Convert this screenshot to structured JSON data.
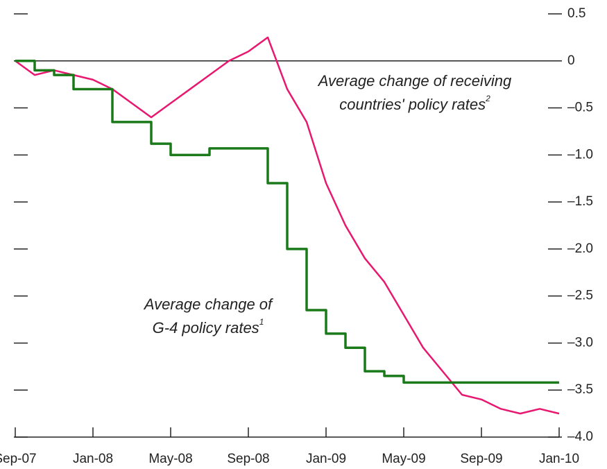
{
  "chart_data": {
    "type": "line",
    "categories": [
      "Sep-07",
      null,
      null,
      null,
      "Jan-08",
      null,
      null,
      null,
      "May-08",
      null,
      null,
      null,
      "Sep-08",
      null,
      null,
      null,
      "Jan-09",
      null,
      null,
      null,
      "May-09",
      null,
      null,
      null,
      "Sep-09",
      null,
      null,
      null,
      "Jan-10"
    ],
    "series": [
      {
        "name": "Average change of receiving countries' policy rates",
        "color": "#e8176f",
        "step": false,
        "values": [
          0.0,
          -0.15,
          -0.1,
          -0.15,
          -0.2,
          -0.3,
          -0.45,
          -0.6,
          -0.45,
          -0.3,
          -0.15,
          0.0,
          0.1,
          0.25,
          -0.3,
          -0.65,
          -1.3,
          -1.75,
          -2.1,
          -2.35,
          -2.7,
          -3.05,
          -3.3,
          -3.55,
          -3.6,
          -3.7,
          -3.75,
          -3.7,
          -3.75
        ]
      },
      {
        "name": "Average change of G-4 policy rates",
        "color": "#1a7a1a",
        "step": true,
        "values": [
          0.0,
          -0.1,
          -0.15,
          -0.3,
          -0.3,
          -0.65,
          -0.65,
          -0.88,
          -1.0,
          -1.0,
          -0.93,
          -0.93,
          -0.93,
          -1.3,
          -2.0,
          -2.65,
          -2.9,
          -3.05,
          -3.3,
          -3.35,
          -3.42,
          -3.42,
          -3.42,
          -3.42,
          -3.42,
          -3.42,
          -3.42,
          -3.42,
          -3.42
        ]
      }
    ],
    "annotations": [
      {
        "lines": [
          "Average change of receiving",
          "countries' policy rates"
        ],
        "sup": "2"
      },
      {
        "lines": [
          "Average change of",
          "G-4 policy rates"
        ],
        "sup": "1"
      }
    ],
    "ylim": [
      -4.0,
      0.5
    ],
    "yticks": [
      0.5,
      0,
      {
        "value": -0.5,
        "label": "–0.5"
      },
      {
        "value": -1.0,
        "label": "–1.0"
      },
      {
        "value": -1.5,
        "label": "–1.5"
      },
      {
        "value": -2.0,
        "label": "–2.0"
      },
      {
        "value": -2.5,
        "label": "–2.5"
      },
      {
        "value": -3.0,
        "label": "–3.0"
      },
      {
        "value": -3.5,
        "label": "–3.5"
      },
      {
        "value": -4.0,
        "label": "–4.0"
      }
    ],
    "zero_line": true
  }
}
